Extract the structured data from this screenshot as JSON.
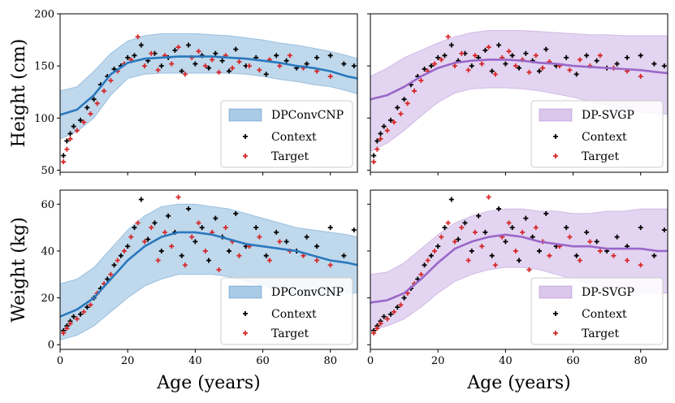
{
  "chart_data": [
    {
      "type": "scatter",
      "panel": "top-left",
      "model": "DPConvCNP",
      "xlabel": "",
      "ylabel": "Height (cm)",
      "xlim": [
        0,
        88
      ],
      "ylim": [
        48,
        200
      ],
      "xticks": [
        0,
        20,
        40,
        60,
        80
      ],
      "yticks": [
        50,
        100,
        150,
        200
      ],
      "show_xticklabels": false,
      "legend": [
        "DPConvCNP",
        "Context",
        "Target"
      ],
      "legend_position": "lower-right",
      "mean": {
        "x": [
          0,
          5,
          10,
          15,
          20,
          25,
          30,
          35,
          40,
          45,
          50,
          55,
          60,
          65,
          70,
          75,
          80,
          85,
          88
        ],
        "y": [
          103,
          108,
          122,
          142,
          153,
          157,
          158,
          159,
          159,
          159,
          158,
          157,
          155,
          153,
          150,
          148,
          145,
          140,
          138
        ]
      },
      "band": {
        "x": [
          0,
          5,
          10,
          15,
          20,
          25,
          30,
          35,
          40,
          45,
          50,
          55,
          60,
          65,
          70,
          75,
          80,
          85,
          88
        ],
        "lower": [
          80,
          87,
          100,
          122,
          138,
          142,
          143,
          143,
          143,
          143,
          143,
          142,
          140,
          137,
          135,
          132,
          130,
          126,
          123
        ],
        "upper": [
          126,
          130,
          145,
          162,
          174,
          179,
          181,
          181,
          181,
          180,
          179,
          177,
          175,
          172,
          170,
          167,
          164,
          160,
          157
        ]
      },
      "context": {
        "x": [
          1,
          2,
          3,
          4,
          6,
          8,
          10,
          12,
          14,
          16,
          18,
          20,
          22,
          24,
          26,
          28,
          30,
          32,
          34,
          36,
          38,
          40,
          42,
          44,
          46,
          48,
          50,
          52,
          55,
          58,
          61,
          64,
          67,
          70,
          73,
          76,
          80,
          84,
          87
        ],
        "y": [
          64,
          78,
          85,
          92,
          98,
          110,
          118,
          132,
          140,
          147,
          150,
          158,
          160,
          170,
          155,
          162,
          150,
          158,
          165,
          145,
          170,
          152,
          160,
          148,
          162,
          155,
          145,
          166,
          150,
          158,
          142,
          160,
          155,
          148,
          152,
          158,
          160,
          152,
          150
        ]
      },
      "target": {
        "x": [
          1,
          2,
          3,
          5,
          7,
          9,
          11,
          13,
          15,
          17,
          19,
          21,
          23,
          25,
          27,
          29,
          31,
          33,
          35,
          37,
          39,
          41,
          43,
          45,
          47,
          49,
          51,
          53,
          56,
          59,
          62,
          65,
          68,
          72,
          76,
          80
        ],
        "y": [
          58,
          70,
          80,
          88,
          96,
          104,
          114,
          126,
          136,
          145,
          152,
          156,
          178,
          150,
          162,
          146,
          160,
          152,
          168,
          142,
          158,
          164,
          150,
          156,
          144,
          160,
          148,
          154,
          150,
          146,
          156,
          150,
          160,
          148,
          145,
          140
        ]
      }
    },
    {
      "type": "scatter",
      "panel": "top-right",
      "model": "DP-SVGP",
      "xlabel": "",
      "ylabel": "",
      "xlim": [
        0,
        88
      ],
      "ylim": [
        48,
        200
      ],
      "xticks": [
        0,
        20,
        40,
        60,
        80
      ],
      "yticks": [
        50,
        100,
        150,
        200
      ],
      "show_xticklabels": false,
      "show_yticklabels": false,
      "legend": [
        "DP-SVGP",
        "Context",
        "Target"
      ],
      "legend_position": "lower-right",
      "mean": {
        "x": [
          0,
          5,
          10,
          15,
          20,
          25,
          30,
          35,
          40,
          45,
          50,
          55,
          60,
          65,
          70,
          75,
          80,
          85,
          88
        ],
        "y": [
          118,
          122,
          130,
          140,
          148,
          153,
          155,
          156,
          156,
          155,
          153,
          152,
          150,
          149,
          148,
          147,
          146,
          144,
          143
        ]
      },
      "band": {
        "x": [
          0,
          5,
          10,
          15,
          20,
          25,
          30,
          35,
          40,
          45,
          50,
          55,
          60,
          65,
          70,
          75,
          80,
          85,
          88
        ],
        "lower": [
          68,
          76,
          88,
          102,
          115,
          124,
          128,
          129,
          129,
          128,
          126,
          123,
          120,
          116,
          112,
          108,
          106,
          104,
          104
        ],
        "upper": [
          140,
          148,
          158,
          165,
          172,
          178,
          182,
          184,
          184,
          184,
          183,
          182,
          181,
          180,
          180,
          179,
          179,
          179,
          179
        ]
      },
      "context": {
        "x": [
          1,
          2,
          3,
          4,
          6,
          8,
          10,
          12,
          14,
          16,
          18,
          20,
          22,
          24,
          26,
          28,
          30,
          32,
          34,
          36,
          38,
          40,
          42,
          44,
          46,
          48,
          50,
          52,
          55,
          58,
          61,
          64,
          67,
          70,
          73,
          76,
          80,
          84,
          87
        ],
        "y": [
          64,
          78,
          85,
          92,
          98,
          110,
          118,
          132,
          140,
          147,
          150,
          158,
          160,
          170,
          155,
          162,
          150,
          158,
          165,
          145,
          170,
          152,
          160,
          148,
          162,
          155,
          145,
          166,
          150,
          158,
          142,
          160,
          155,
          148,
          152,
          158,
          160,
          152,
          150
        ]
      },
      "target": {
        "x": [
          1,
          2,
          3,
          5,
          7,
          9,
          11,
          13,
          15,
          17,
          19,
          21,
          23,
          25,
          27,
          29,
          31,
          33,
          35,
          37,
          39,
          41,
          43,
          45,
          47,
          49,
          51,
          53,
          56,
          59,
          62,
          65,
          68,
          72,
          76,
          80
        ],
        "y": [
          58,
          70,
          80,
          88,
          96,
          104,
          114,
          126,
          136,
          145,
          152,
          156,
          178,
          150,
          162,
          146,
          160,
          152,
          168,
          142,
          158,
          164,
          150,
          156,
          144,
          160,
          148,
          154,
          150,
          146,
          156,
          150,
          160,
          148,
          145,
          140
        ]
      }
    },
    {
      "type": "scatter",
      "panel": "bottom-left",
      "model": "DPConvCNP",
      "xlabel": "Age (years)",
      "ylabel": "Weight (kg)",
      "xlim": [
        0,
        88
      ],
      "ylim": [
        -2,
        66
      ],
      "xticks": [
        0,
        20,
        40,
        60,
        80
      ],
      "yticks": [
        0,
        20,
        40,
        60
      ],
      "legend": [
        "DPConvCNP",
        "Context",
        "Target"
      ],
      "legend_position": "lower-right",
      "mean": {
        "x": [
          0,
          5,
          10,
          15,
          20,
          25,
          30,
          35,
          40,
          45,
          50,
          55,
          60,
          65,
          70,
          75,
          80,
          85,
          88
        ],
        "y": [
          12,
          15,
          20,
          28,
          36,
          42,
          46,
          48,
          48,
          47,
          45,
          43,
          42,
          41,
          40,
          38,
          36,
          35,
          34
        ]
      },
      "band": {
        "x": [
          0,
          5,
          10,
          15,
          20,
          25,
          30,
          35,
          40,
          45,
          50,
          55,
          60,
          65,
          70,
          75,
          80,
          85,
          88
        ],
        "lower": [
          2,
          4,
          8,
          14,
          20,
          25,
          28,
          30,
          30,
          30,
          29,
          27,
          25,
          23,
          22,
          21,
          21,
          22,
          22
        ]
      },
      "band_upper": {
        "x": [
          0,
          5,
          10,
          15,
          20,
          25,
          30,
          35,
          40,
          45,
          50,
          55,
          60,
          65,
          70,
          75,
          80,
          85,
          88
        ],
        "upper": [
          26,
          28,
          33,
          41,
          49,
          55,
          59,
          60,
          60,
          59,
          58,
          56,
          54,
          52,
          50,
          49,
          48,
          47,
          46
        ]
      },
      "context": {
        "x": [
          1,
          2,
          3,
          4,
          6,
          8,
          10,
          12,
          14,
          16,
          18,
          20,
          22,
          24,
          26,
          28,
          30,
          32,
          34,
          36,
          38,
          40,
          42,
          44,
          46,
          48,
          50,
          52,
          55,
          58,
          61,
          64,
          67,
          70,
          73,
          76,
          80,
          84,
          87
        ],
        "y": [
          6,
          8,
          10,
          12,
          13,
          16,
          20,
          24,
          28,
          34,
          38,
          42,
          50,
          62,
          45,
          52,
          40,
          55,
          48,
          38,
          58,
          44,
          50,
          36,
          54,
          46,
          40,
          56,
          42,
          50,
          38,
          48,
          44,
          40,
          46,
          42,
          50,
          38,
          49
        ]
      },
      "target": {
        "x": [
          1,
          2,
          3,
          5,
          7,
          9,
          11,
          13,
          15,
          17,
          19,
          21,
          23,
          25,
          27,
          29,
          31,
          33,
          35,
          37,
          39,
          41,
          43,
          45,
          47,
          49,
          51,
          53,
          56,
          59,
          62,
          65,
          68,
          72,
          76,
          80
        ],
        "y": [
          5,
          7,
          9,
          11,
          14,
          17,
          22,
          26,
          30,
          36,
          40,
          46,
          52,
          44,
          50,
          36,
          48,
          42,
          63,
          34,
          46,
          52,
          40,
          48,
          32,
          50,
          44,
          38,
          42,
          46,
          36,
          44,
          40,
          38,
          36,
          34
        ]
      }
    },
    {
      "type": "scatter",
      "panel": "bottom-right",
      "model": "DP-SVGP",
      "xlabel": "Age (years)",
      "ylabel": "",
      "xlim": [
        0,
        88
      ],
      "ylim": [
        -2,
        66
      ],
      "xticks": [
        0,
        20,
        40,
        60,
        80
      ],
      "yticks": [
        0,
        20,
        40,
        60
      ],
      "show_yticklabels": false,
      "legend": [
        "DP-SVGP",
        "Context",
        "Target"
      ],
      "legend_position": "lower-right",
      "mean": {
        "x": [
          0,
          5,
          10,
          15,
          20,
          25,
          30,
          35,
          40,
          45,
          50,
          55,
          60,
          65,
          70,
          75,
          80,
          85,
          88
        ],
        "y": [
          18,
          19,
          22,
          28,
          35,
          41,
          44,
          46,
          47,
          46,
          44,
          43,
          42,
          42,
          41,
          41,
          41,
          40,
          40
        ]
      },
      "band": {
        "x": [
          0,
          5,
          10,
          15,
          20,
          25,
          30,
          35,
          40,
          45,
          50,
          55,
          60,
          65,
          70,
          75,
          80,
          85,
          88
        ],
        "lower": [
          6,
          8,
          11,
          16,
          22,
          27,
          30,
          32,
          33,
          33,
          32,
          30,
          28,
          26,
          24,
          23,
          22,
          22,
          22
        ]
      },
      "band_upper": {
        "x": [
          0,
          5,
          10,
          15,
          20,
          25,
          30,
          35,
          40,
          45,
          50,
          55,
          60,
          65,
          70,
          75,
          80,
          85,
          88
        ],
        "upper": [
          30,
          31,
          35,
          41,
          47,
          52,
          55,
          57,
          58,
          58,
          57,
          57,
          56,
          56,
          57,
          57,
          58,
          58,
          58
        ]
      },
      "context": {
        "x": [
          1,
          2,
          3,
          4,
          6,
          8,
          10,
          12,
          14,
          16,
          18,
          20,
          22,
          24,
          26,
          28,
          30,
          32,
          34,
          36,
          38,
          40,
          42,
          44,
          46,
          48,
          50,
          52,
          55,
          58,
          61,
          64,
          67,
          70,
          73,
          76,
          80,
          84,
          87
        ],
        "y": [
          6,
          8,
          10,
          12,
          13,
          16,
          20,
          24,
          28,
          34,
          38,
          42,
          50,
          62,
          45,
          52,
          40,
          55,
          48,
          38,
          58,
          44,
          50,
          36,
          54,
          46,
          40,
          56,
          42,
          50,
          38,
          48,
          44,
          40,
          46,
          42,
          50,
          38,
          49
        ]
      },
      "target": {
        "x": [
          1,
          2,
          3,
          5,
          7,
          9,
          11,
          13,
          15,
          17,
          19,
          21,
          23,
          25,
          27,
          29,
          31,
          33,
          35,
          37,
          39,
          41,
          43,
          45,
          47,
          49,
          51,
          53,
          56,
          59,
          62,
          65,
          68,
          72,
          76,
          80
        ],
        "y": [
          5,
          7,
          9,
          11,
          14,
          17,
          22,
          26,
          30,
          36,
          40,
          46,
          52,
          44,
          50,
          36,
          48,
          42,
          63,
          34,
          46,
          52,
          40,
          48,
          32,
          50,
          44,
          38,
          42,
          46,
          36,
          44,
          40,
          38,
          36,
          34
        ]
      }
    }
  ],
  "colors": {
    "dpconvcnp_line": "#2a78bd",
    "dpconvcnp_band": "#a9cbe6",
    "dpsvgp_line": "#9a67c8",
    "dpsvgp_band": "#dac7ec",
    "context": "#000000",
    "target": "#d62728"
  }
}
